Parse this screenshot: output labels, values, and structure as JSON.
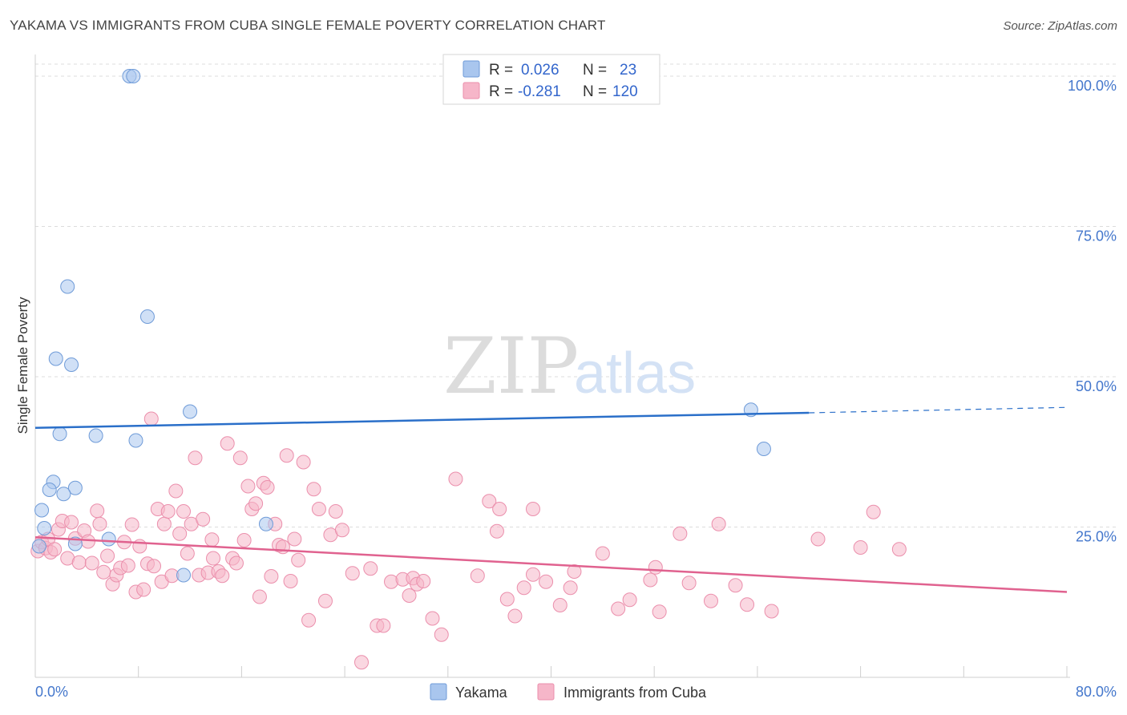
{
  "chart_data": {
    "type": "scatter",
    "title": "YAKAMA VS IMMIGRANTS FROM CUBA SINGLE FEMALE POVERTY CORRELATION CHART",
    "source": "Source: ZipAtlas.com",
    "ylabel": "Single Female Poverty",
    "xlabel": "",
    "xlim": [
      0,
      80
    ],
    "ylim": [
      0,
      102
    ],
    "x_tick_labels": [
      "0.0%",
      "80.0%"
    ],
    "y_ticks": [
      {
        "value": 100,
        "label": "100.0%"
      },
      {
        "value": 75,
        "label": "75.0%"
      },
      {
        "value": 50,
        "label": "50.0%"
      },
      {
        "value": 25,
        "label": "25.0%"
      }
    ],
    "watermark": {
      "part1": "ZIP",
      "part2": "atlas"
    },
    "legend_box": [
      {
        "r_label": "R =",
        "r_value": "0.026",
        "n_label": "N =",
        "n_value": "23"
      },
      {
        "r_label": "R =",
        "r_value": "-0.281",
        "n_label": "N =",
        "n_value": "120"
      }
    ],
    "colors": {
      "yakama_fill": "#a9c6ee",
      "yakama_stroke": "#6f9bd8",
      "yakama_line": "#2a6fc9",
      "cuba_fill": "#f6b6c9",
      "cuba_stroke": "#eb8fac",
      "cuba_line": "#e0628f",
      "grid": "#dcdcdc",
      "tick_text": "#4477cc"
    },
    "series": [
      {
        "name": "Yakama",
        "trend": {
          "x0": 0,
          "y0": 41.5,
          "x1": 60,
          "y1": 44,
          "dash_x1": 80,
          "dash_y1": 44.9
        },
        "points": [
          [
            7.3,
            100
          ],
          [
            7.6,
            100
          ],
          [
            2.5,
            65
          ],
          [
            8.7,
            60
          ],
          [
            1.6,
            53
          ],
          [
            2.8,
            52
          ],
          [
            12.0,
            44.2
          ],
          [
            1.9,
            40.5
          ],
          [
            4.7,
            40.2
          ],
          [
            7.8,
            39.4
          ],
          [
            1.4,
            32.5
          ],
          [
            1.1,
            31.2
          ],
          [
            3.1,
            31.5
          ],
          [
            2.2,
            30.5
          ],
          [
            0.5,
            27.8
          ],
          [
            0.7,
            24.8
          ],
          [
            5.7,
            23.0
          ],
          [
            3.1,
            22.2
          ],
          [
            0.3,
            21.8
          ],
          [
            11.5,
            17.0
          ],
          [
            17.9,
            25.5
          ],
          [
            55.5,
            44.5
          ],
          [
            56.5,
            38.0
          ]
        ]
      },
      {
        "name": "Immigrants from Cuba",
        "trend": {
          "x0": 0,
          "y0": 23.3,
          "x1": 80,
          "y1": 14.2
        },
        "points": [
          [
            0.2,
            21.0
          ],
          [
            0.5,
            22.5
          ],
          [
            0.8,
            21.5
          ],
          [
            1.0,
            23.0
          ],
          [
            1.2,
            20.8
          ],
          [
            1.5,
            21.3
          ],
          [
            1.8,
            24.6
          ],
          [
            2.1,
            26.0
          ],
          [
            2.5,
            19.8
          ],
          [
            2.8,
            25.8
          ],
          [
            3.1,
            23.1
          ],
          [
            3.4,
            19.1
          ],
          [
            3.8,
            24.4
          ],
          [
            4.1,
            22.6
          ],
          [
            4.4,
            19.0
          ],
          [
            4.8,
            27.7
          ],
          [
            5.0,
            25.5
          ],
          [
            5.3,
            17.5
          ],
          [
            5.6,
            20.2
          ],
          [
            6.0,
            15.5
          ],
          [
            6.3,
            17.0
          ],
          [
            6.6,
            18.2
          ],
          [
            6.9,
            22.5
          ],
          [
            7.2,
            18.6
          ],
          [
            7.5,
            25.4
          ],
          [
            7.8,
            14.2
          ],
          [
            8.1,
            21.8
          ],
          [
            8.4,
            14.6
          ],
          [
            8.7,
            18.9
          ],
          [
            9.0,
            43.0
          ],
          [
            9.2,
            18.5
          ],
          [
            9.5,
            28.0
          ],
          [
            9.8,
            15.9
          ],
          [
            10.0,
            25.5
          ],
          [
            10.3,
            27.6
          ],
          [
            10.6,
            16.9
          ],
          [
            10.9,
            31.0
          ],
          [
            11.2,
            23.9
          ],
          [
            11.5,
            27.6
          ],
          [
            11.8,
            20.6
          ],
          [
            12.1,
            25.5
          ],
          [
            12.4,
            36.5
          ],
          [
            12.7,
            17.0
          ],
          [
            13.0,
            26.3
          ],
          [
            13.4,
            17.4
          ],
          [
            13.7,
            22.9
          ],
          [
            13.8,
            19.8
          ],
          [
            14.2,
            17.6
          ],
          [
            14.5,
            16.9
          ],
          [
            14.9,
            38.9
          ],
          [
            15.3,
            19.8
          ],
          [
            15.6,
            19.0
          ],
          [
            15.9,
            36.5
          ],
          [
            16.2,
            22.8
          ],
          [
            16.5,
            31.8
          ],
          [
            16.8,
            28.0
          ],
          [
            17.1,
            28.9
          ],
          [
            17.4,
            13.4
          ],
          [
            17.7,
            32.3
          ],
          [
            18.0,
            31.6
          ],
          [
            18.3,
            16.8
          ],
          [
            18.6,
            25.5
          ],
          [
            18.9,
            22.0
          ],
          [
            19.2,
            21.7
          ],
          [
            19.5,
            36.9
          ],
          [
            19.8,
            16.0
          ],
          [
            20.1,
            23.0
          ],
          [
            20.4,
            19.5
          ],
          [
            20.8,
            35.8
          ],
          [
            21.2,
            9.5
          ],
          [
            21.6,
            31.3
          ],
          [
            22.0,
            28.0
          ],
          [
            22.5,
            12.7
          ],
          [
            22.9,
            23.7
          ],
          [
            23.3,
            27.6
          ],
          [
            23.8,
            24.5
          ],
          [
            24.6,
            17.3
          ],
          [
            25.3,
            2.5
          ],
          [
            26.0,
            18.1
          ],
          [
            26.5,
            8.6
          ],
          [
            27.0,
            8.6
          ],
          [
            27.6,
            15.9
          ],
          [
            28.5,
            16.3
          ],
          [
            29.0,
            13.6
          ],
          [
            29.3,
            16.5
          ],
          [
            29.6,
            15.5
          ],
          [
            30.8,
            9.8
          ],
          [
            30.1,
            16.0
          ],
          [
            31.5,
            7.1
          ],
          [
            32.6,
            33.0
          ],
          [
            34.3,
            16.9
          ],
          [
            35.2,
            29.3
          ],
          [
            36.0,
            28.0
          ],
          [
            35.8,
            24.3
          ],
          [
            36.6,
            13.0
          ],
          [
            37.2,
            10.2
          ],
          [
            37.9,
            14.9
          ],
          [
            38.6,
            17.1
          ],
          [
            38.6,
            28.0
          ],
          [
            39.6,
            15.9
          ],
          [
            40.7,
            12.0
          ],
          [
            41.5,
            14.9
          ],
          [
            41.8,
            17.6
          ],
          [
            44.0,
            20.6
          ],
          [
            45.2,
            11.4
          ],
          [
            46.1,
            12.9
          ],
          [
            47.7,
            16.2
          ],
          [
            48.1,
            18.3
          ],
          [
            48.4,
            10.9
          ],
          [
            50.0,
            23.9
          ],
          [
            50.7,
            15.7
          ],
          [
            52.4,
            12.7
          ],
          [
            53.0,
            25.5
          ],
          [
            54.3,
            15.3
          ],
          [
            55.2,
            12.1
          ],
          [
            57.1,
            11.0
          ],
          [
            60.7,
            23.0
          ],
          [
            64.0,
            21.6
          ],
          [
            65.0,
            27.5
          ],
          [
            67.0,
            21.3
          ]
        ]
      }
    ]
  }
}
